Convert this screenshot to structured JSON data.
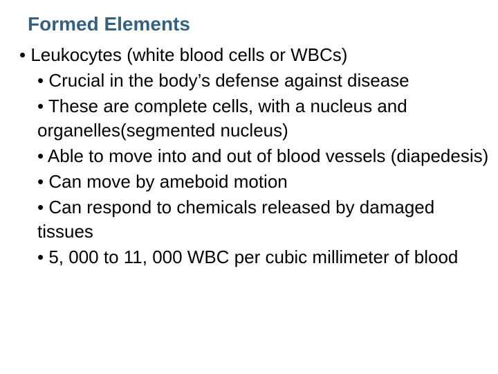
{
  "title_text": "Formed Elements",
  "title_color": "#36607f",
  "body_color": "#000000",
  "background_color": "#ffffff",
  "title_fontsize": 28,
  "body_fontsize": 26,
  "bullet_glyph": "•",
  "level1_item": "Leukocytes (white blood cells or WBCs)",
  "level2_items": [
    "Crucial in the body’s defense against disease",
    "These are complete cells, with a nucleus and organelles(segmented nucleus)",
    "Able to move into and out of blood vessels (diapedesis)",
    "Can move by ameboid motion",
    "Can respond to chemicals released by damaged tissues",
    "5, 000 to 11, 000 WBC per cubic millimeter of blood"
  ]
}
